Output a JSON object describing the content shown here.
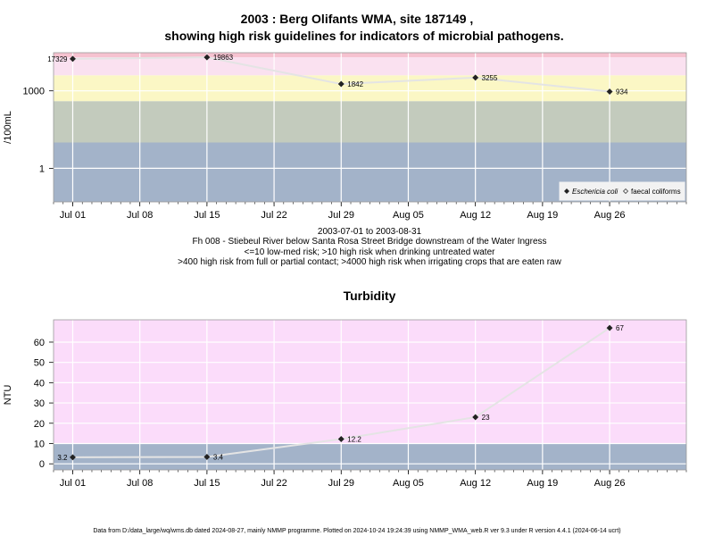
{
  "top": {
    "title_line1": "2003 : Berg Olifants WMA, site 187149 ,",
    "title_line2": "showing high risk guidelines for indicators of microbial pathogens.",
    "date_range": "2003-07-01 to 2003-08-31",
    "site_desc": "Fh 008 - Stiebeul River below Santa Rosa Street Bridge downstream of the Water Ingress",
    "guideline1": "<=10 low-med risk; >10 high risk when drinking untreated water",
    "guideline2": ">400 high risk from full or partial contact; >4000 high risk when irrigating crops that are eaten raw"
  },
  "bottom": {
    "title": "Turbidity"
  },
  "footer": "Data from D:/data_large/wq/wms.db dated 2024-08-27, mainly NMMP programme. Plotted on 2024-10-24 19:24:39 using NMMP_WMA_web.R ver 9.3 under R version 4.4.1 (2024-06-14 ucrt)",
  "chart_data": [
    {
      "type": "line",
      "ylabel": "/100mL",
      "yscale": "log",
      "ylim": [
        0.05,
        30000
      ],
      "y_ticks": [
        1,
        1000
      ],
      "y_tick_labels": [
        "1",
        "1000"
      ],
      "x": [
        "2003-06-29",
        "2003-09-03"
      ],
      "x_ticks": [
        "2003-07-01",
        "2003-07-08",
        "2003-07-15",
        "2003-07-22",
        "2003-07-29",
        "2003-08-05",
        "2003-08-12",
        "2003-08-19",
        "2003-08-26"
      ],
      "x_tick_labels": [
        "Jul 01",
        "Jul 08",
        "Jul 15",
        "Jul 22",
        "Jul 29",
        "Aug 05",
        "Aug 12",
        "Aug 19",
        "Aug 26"
      ],
      "bands": [
        {
          "from": 0.05,
          "to": 10,
          "color": "#a3b3c9"
        },
        {
          "from": 10,
          "to": 400,
          "color": "#c3cbbd"
        },
        {
          "from": 400,
          "to": 4000,
          "color": "#fbf7c5"
        },
        {
          "from": 4000,
          "to": 20000,
          "color": "#fae1f0"
        },
        {
          "from": 20000,
          "to": 30000,
          "color": "#f6c2d0"
        }
      ],
      "series": [
        {
          "name": "Eschericia coli",
          "marker": "filled-diamond",
          "x": [
            "2003-07-01",
            "2003-07-15",
            "2003-07-29",
            "2003-08-12",
            "2003-08-26"
          ],
          "values": [
            17329,
            19863,
            1842,
            3255,
            934
          ],
          "labels": [
            "17329",
            "19863",
            "1842",
            "3255",
            "934"
          ]
        },
        {
          "name": "faecal coliforms",
          "marker": "open-diamond",
          "x": [],
          "values": []
        }
      ],
      "legend_position": "bottom-right",
      "grid": true
    },
    {
      "type": "line",
      "title": "Turbidity",
      "ylabel": "NTU",
      "ylim": [
        -3,
        71
      ],
      "y_ticks": [
        0,
        10,
        20,
        30,
        40,
        50,
        60
      ],
      "y_tick_labels": [
        "0",
        "10",
        "20",
        "30",
        "40",
        "50",
        "60"
      ],
      "x": [
        "2003-06-29",
        "2003-09-03"
      ],
      "x_ticks": [
        "2003-07-01",
        "2003-07-08",
        "2003-07-15",
        "2003-07-22",
        "2003-07-29",
        "2003-08-05",
        "2003-08-12",
        "2003-08-19",
        "2003-08-26"
      ],
      "x_tick_labels": [
        "Jul 01",
        "Jul 08",
        "Jul 15",
        "Jul 22",
        "Jul 29",
        "Aug 05",
        "Aug 12",
        "Aug 19",
        "Aug 26"
      ],
      "bands": [
        {
          "from": -3,
          "to": 10,
          "color": "#a3b3c9"
        },
        {
          "from": 10,
          "to": 71,
          "color": "#fbdcfa"
        }
      ],
      "series": [
        {
          "marker": "filled-diamond",
          "x": [
            "2003-07-01",
            "2003-07-15",
            "2003-07-29",
            "2003-08-12",
            "2003-08-26"
          ],
          "values": [
            3.2,
            3.4,
            12.2,
            23,
            67
          ],
          "labels": [
            "3.2",
            "3.4",
            "12.2",
            "23",
            "67"
          ]
        }
      ],
      "grid": true
    }
  ]
}
